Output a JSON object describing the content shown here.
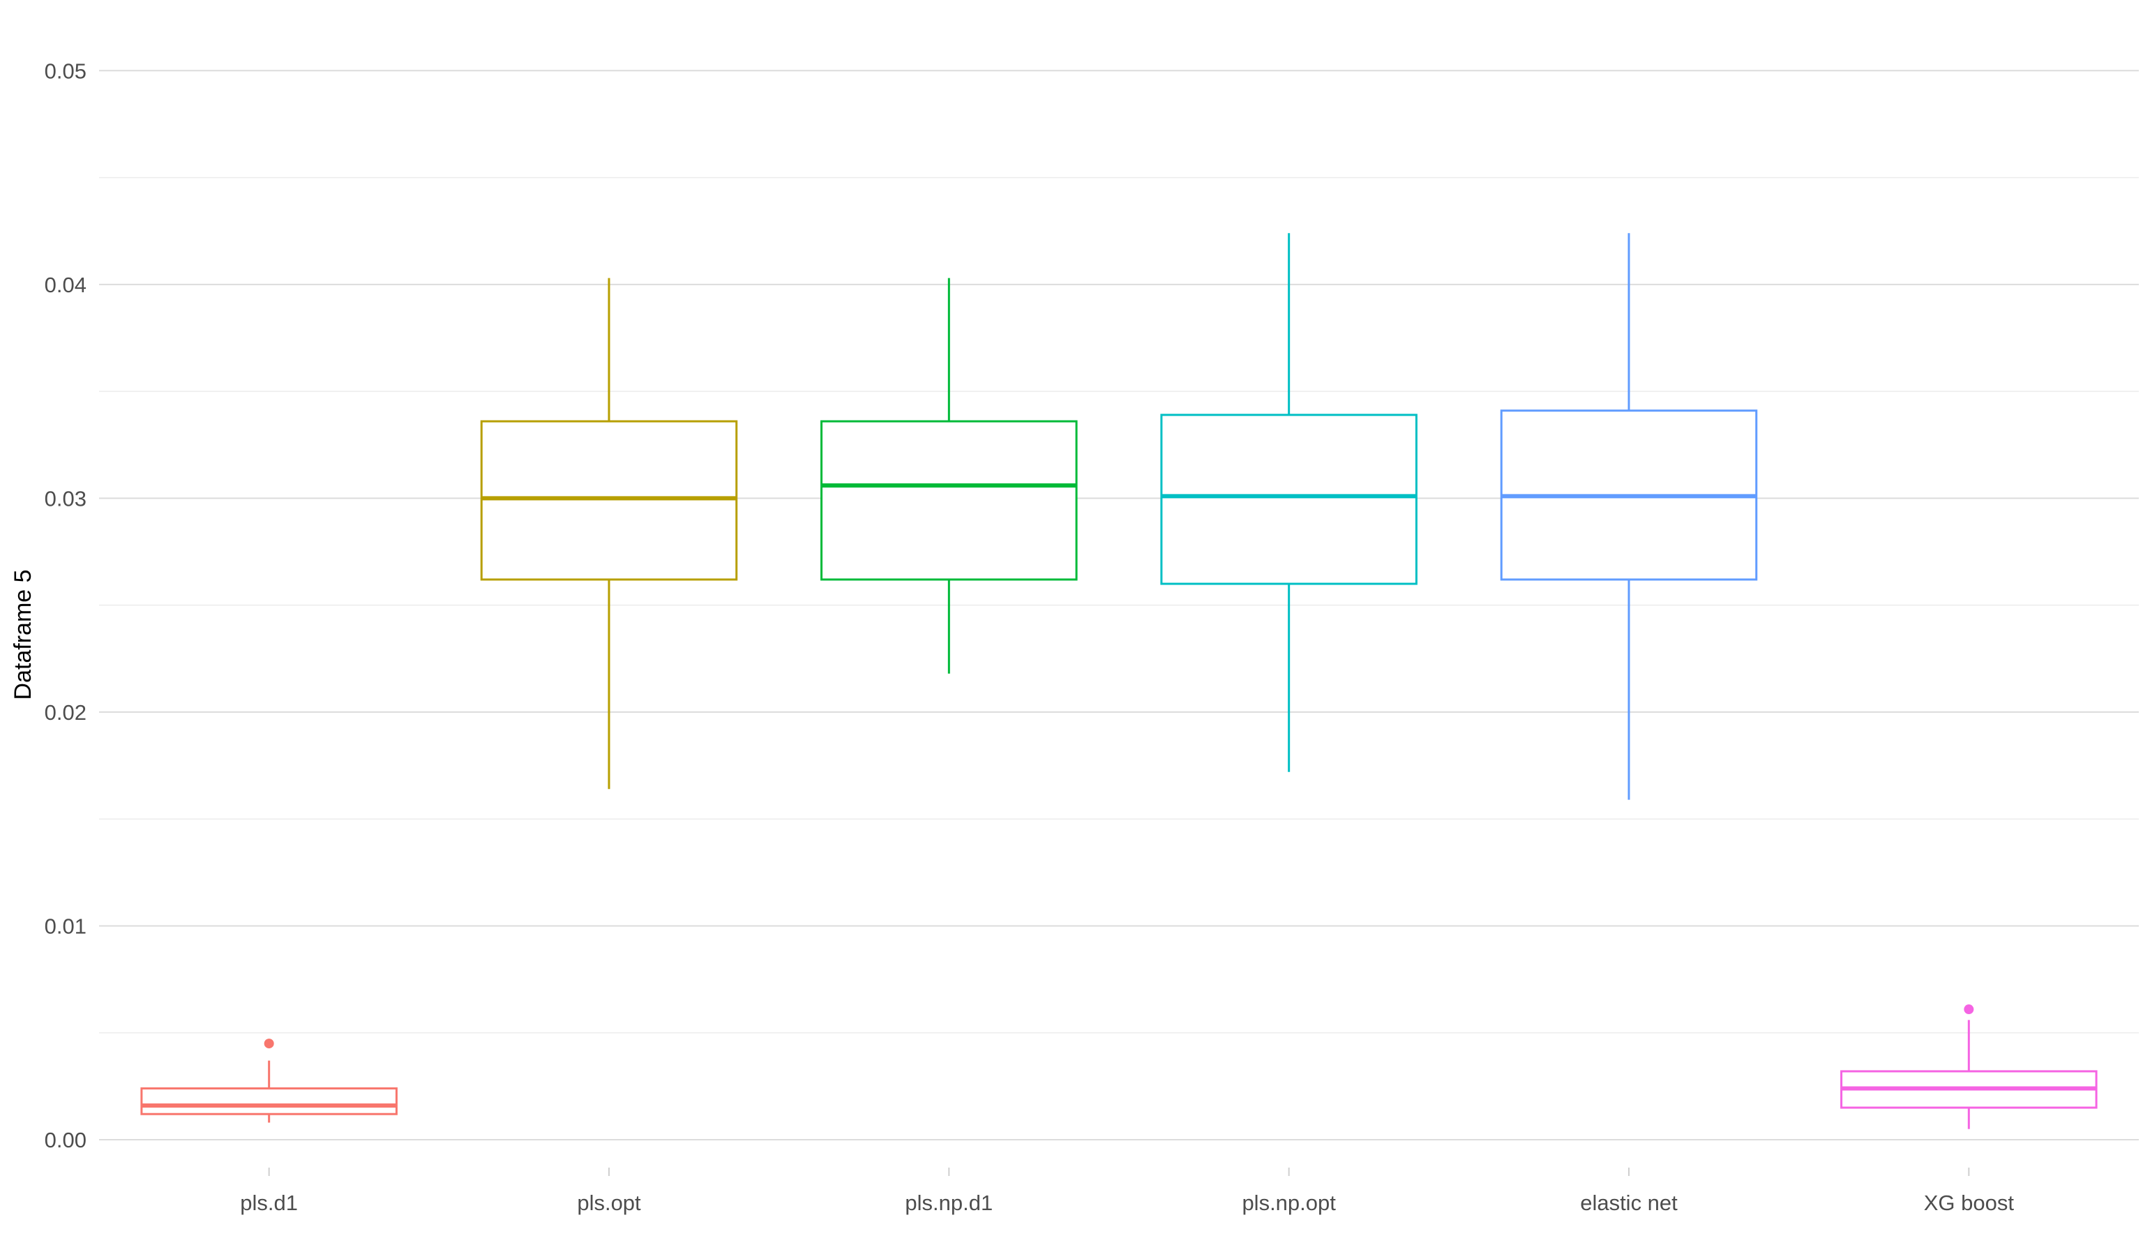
{
  "chart_data": {
    "type": "boxplot",
    "ylabel": "Dataframe 5",
    "xlabel": "",
    "ylim": [
      -0.0015,
      0.052
    ],
    "yticks": [
      0.0,
      0.01,
      0.02,
      0.03,
      0.04,
      0.05
    ],
    "ytick_labels": [
      "0.00",
      "0.01",
      "0.02",
      "0.03",
      "0.04",
      "0.05"
    ],
    "grid": true,
    "legend": "none",
    "categories": [
      "pls.d1",
      "pls.opt",
      "pls.np.d1",
      "pls.np.opt",
      "elastic net",
      "XG boost"
    ],
    "colors": [
      "#F8766D",
      "#B79F00",
      "#00BA38",
      "#00BFC4",
      "#619CFF",
      "#F564E3"
    ],
    "boxes": [
      {
        "min": 0.0008,
        "q1": 0.0012,
        "median": 0.0016,
        "q3": 0.0024,
        "max": 0.0037,
        "outliers": [
          0.0045
        ]
      },
      {
        "min": 0.0164,
        "q1": 0.0262,
        "median": 0.03,
        "q3": 0.0336,
        "max": 0.0403,
        "outliers": []
      },
      {
        "min": 0.0218,
        "q1": 0.0262,
        "median": 0.0306,
        "q3": 0.0336,
        "max": 0.0403,
        "outliers": []
      },
      {
        "min": 0.0172,
        "q1": 0.026,
        "median": 0.0301,
        "q3": 0.0339,
        "max": 0.0424,
        "outliers": []
      },
      {
        "min": 0.0159,
        "q1": 0.0262,
        "median": 0.0301,
        "q3": 0.0341,
        "max": 0.0424,
        "outliers": []
      },
      {
        "min": 0.0005,
        "q1": 0.0015,
        "median": 0.0024,
        "q3": 0.0032,
        "max": 0.0056,
        "outliers": [
          0.0061
        ]
      }
    ]
  }
}
